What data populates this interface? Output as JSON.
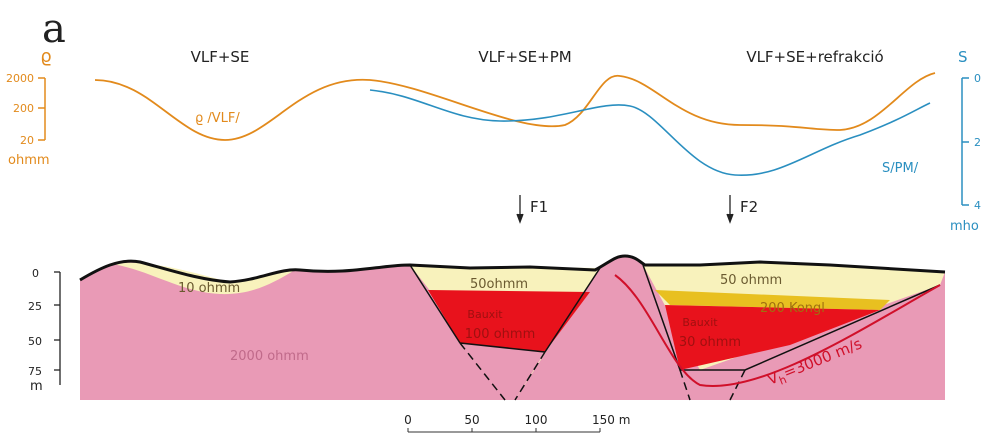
{
  "panel_label": "a",
  "left_axis": {
    "symbol": "ϱ",
    "ticks": [
      "2000",
      "200",
      "20"
    ],
    "unit": "ohmm"
  },
  "right_axis": {
    "symbol": "S",
    "ticks": [
      "0",
      "2",
      "4"
    ],
    "unit": "mho"
  },
  "section_titles": [
    "VLF+SE",
    "VLF+SE+PM",
    "VLF+SE+refrakció"
  ],
  "curve_labels": {
    "rho": "ϱ /VLF/",
    "s": "S/PM/"
  },
  "faults": [
    "F1",
    "F2"
  ],
  "depth_axis": {
    "ticks": [
      "0",
      "25",
      "50",
      "75"
    ],
    "unit": "m"
  },
  "layers": {
    "left_cover": "10 ohmm",
    "basement": "2000 ohmm",
    "mid_cover": "50ohmm",
    "mid_bauxite": [
      "Bauxit",
      "100 ohmm"
    ],
    "right_cover": "50 ohmm",
    "conglomerate": "200 Kongl",
    "right_bauxite": [
      "Bauxit",
      "30 ohmm"
    ],
    "velocity": {
      "symbol": "V",
      "sub": "h",
      "text": "=3000 m/s"
    }
  },
  "scale_bar": [
    "0",
    "50",
    "100",
    "150 m"
  ]
}
